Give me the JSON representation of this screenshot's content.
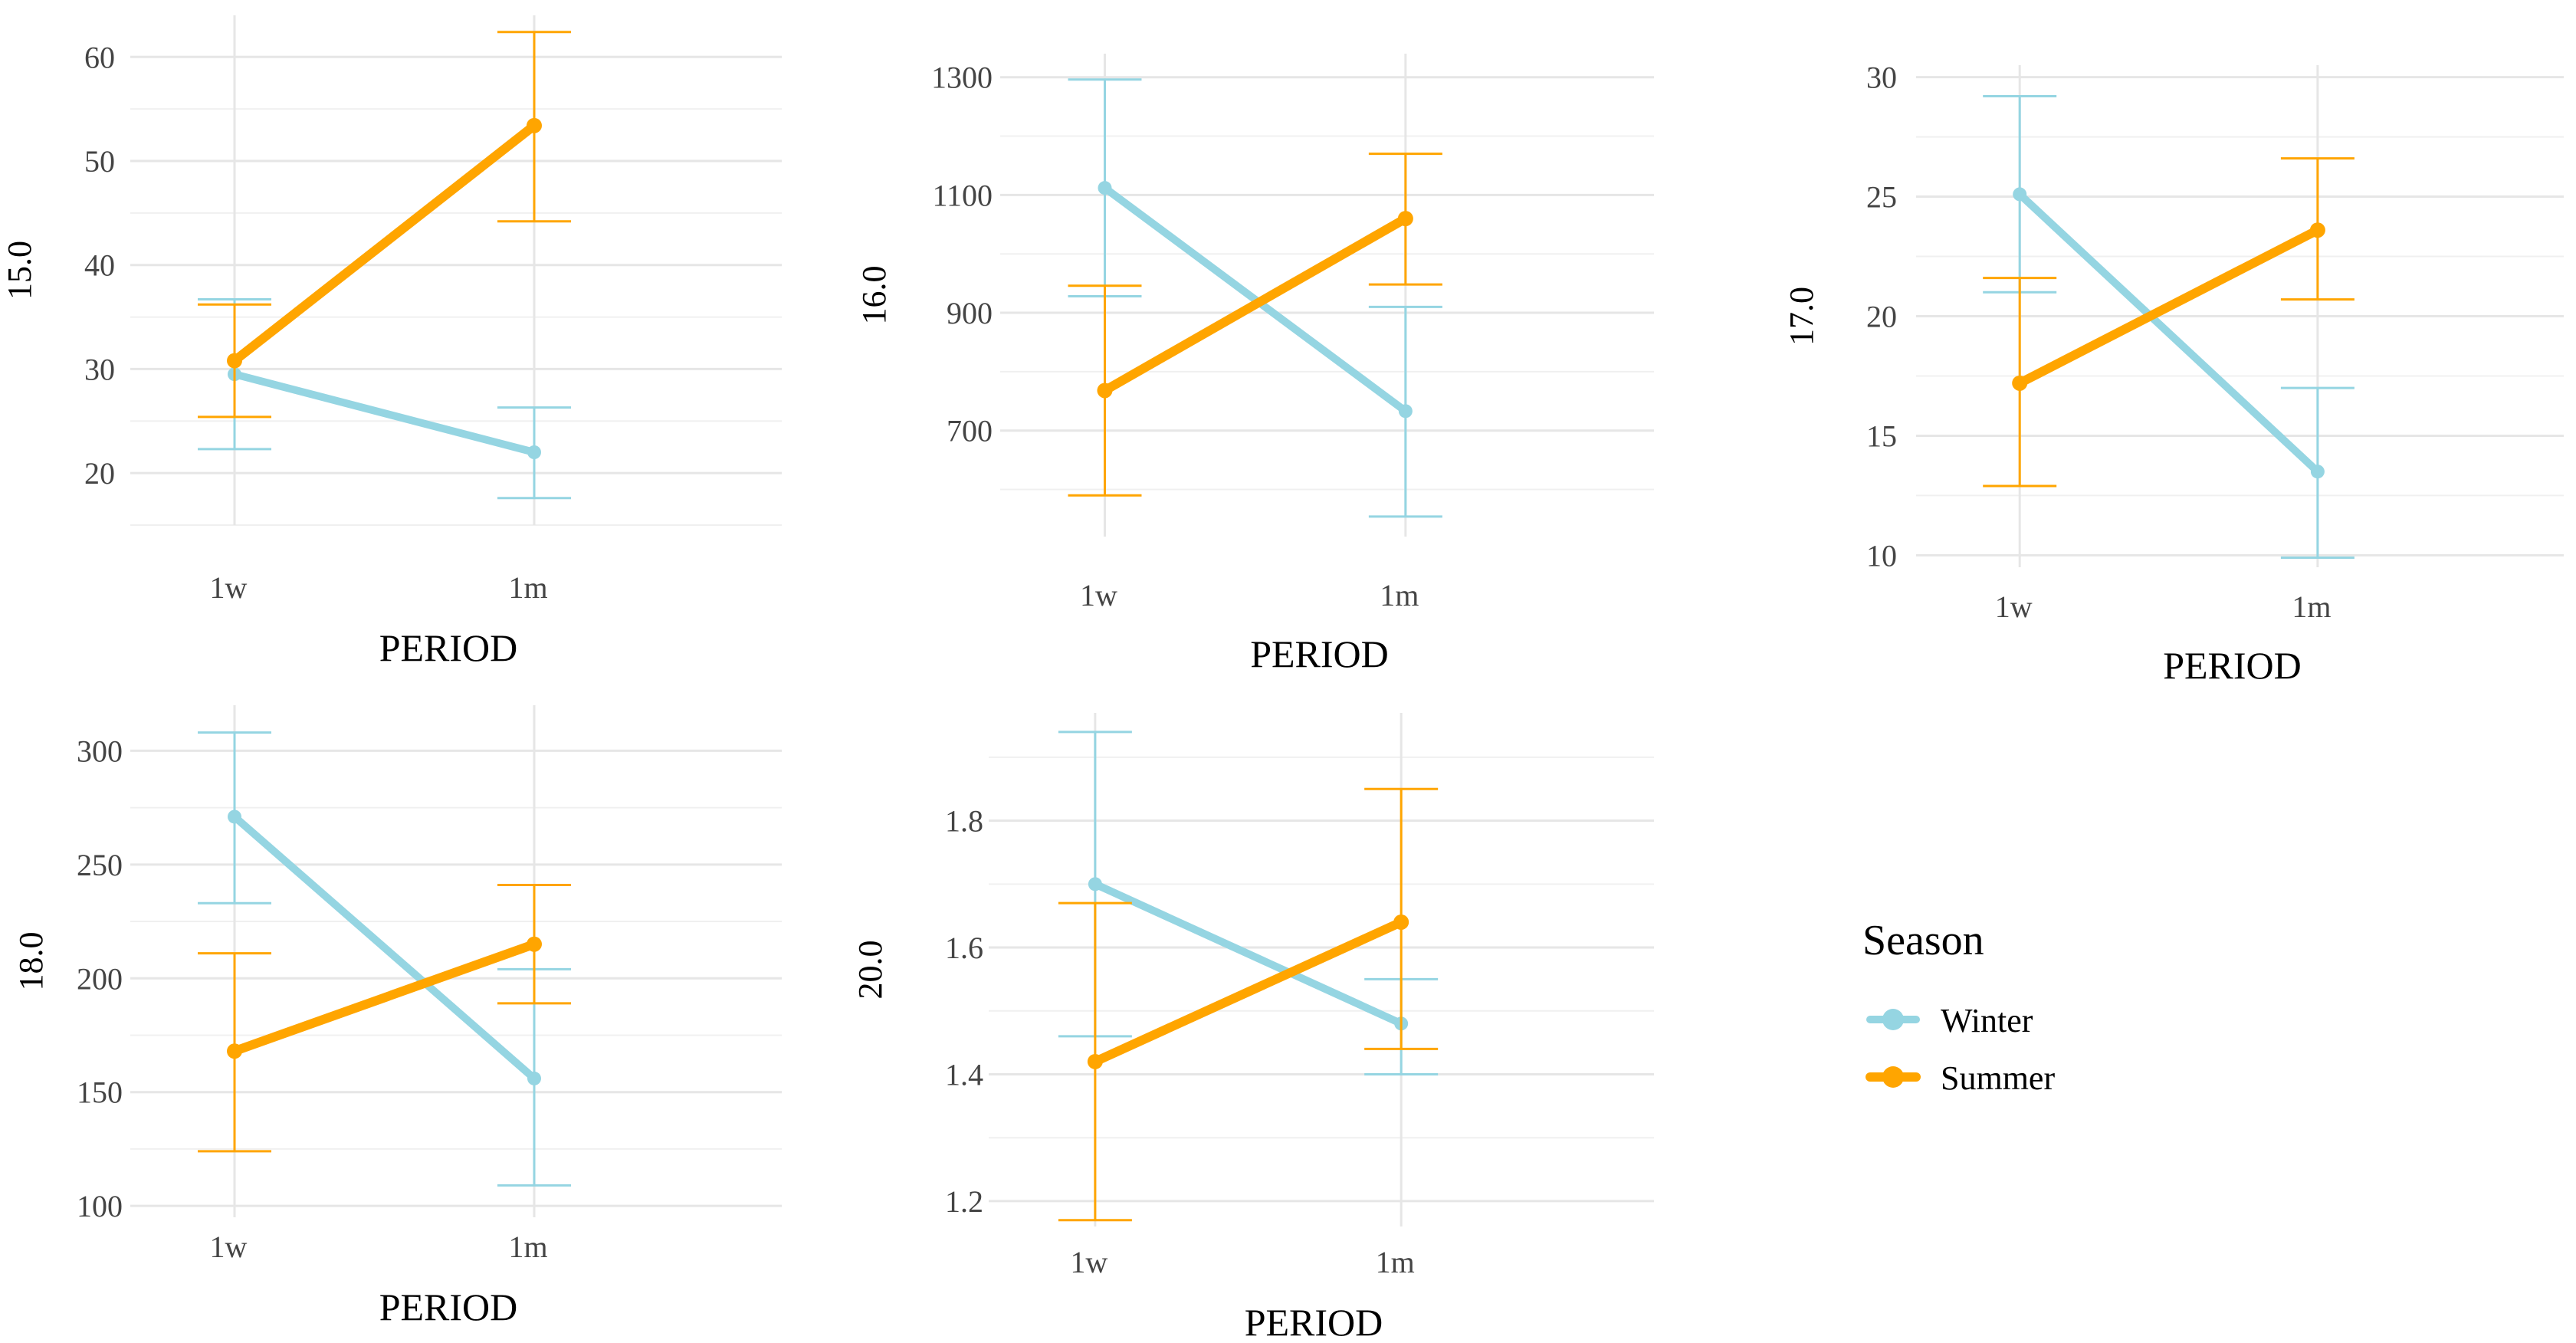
{
  "legend": {
    "title": "Season",
    "entries": [
      {
        "name": "Winter",
        "color": "#95d5e2"
      },
      {
        "name": "Summer",
        "color": "#ffa500"
      }
    ]
  },
  "chart_data": [
    {
      "type": "line",
      "ylabel": "15.0",
      "xlabel": "PERIOD",
      "categories": [
        "1w",
        "1m"
      ],
      "ylim": [
        15,
        64
      ],
      "yticks": [
        20,
        30,
        40,
        50,
        60
      ],
      "series": [
        {
          "name": "Winter",
          "color": "#95d5e2",
          "values": [
            29.5,
            22.0
          ],
          "lower": [
            22.3,
            17.6
          ],
          "upper": [
            36.7,
            26.3
          ]
        },
        {
          "name": "Summer",
          "color": "#ffa500",
          "values": [
            30.8,
            53.4
          ],
          "lower": [
            25.4,
            44.2
          ],
          "upper": [
            36.2,
            62.4
          ]
        }
      ]
    },
    {
      "type": "line",
      "ylabel": "16.0",
      "xlabel": "PERIOD",
      "categories": [
        "1w",
        "1m"
      ],
      "ylim": [
        520,
        1340
      ],
      "yticks": [
        700,
        900,
        1100,
        1300
      ],
      "series": [
        {
          "name": "Winter",
          "color": "#95d5e2",
          "values": [
            1112,
            733
          ],
          "lower": [
            928,
            554
          ],
          "upper": [
            1296,
            910
          ]
        },
        {
          "name": "Summer",
          "color": "#ffa500",
          "values": [
            768,
            1060
          ],
          "lower": [
            590,
            948
          ],
          "upper": [
            946,
            1170
          ]
        }
      ]
    },
    {
      "type": "line",
      "ylabel": "17.0",
      "xlabel": "PERIOD",
      "categories": [
        "1w",
        "1m"
      ],
      "ylim": [
        9.5,
        30.5
      ],
      "yticks": [
        10,
        15,
        20,
        25,
        30
      ],
      "series": [
        {
          "name": "Winter",
          "color": "#95d5e2",
          "values": [
            25.1,
            13.5
          ],
          "lower": [
            21.0,
            9.9
          ],
          "upper": [
            29.2,
            17.0
          ]
        },
        {
          "name": "Summer",
          "color": "#ffa500",
          "values": [
            17.2,
            23.6
          ],
          "lower": [
            12.9,
            20.7
          ],
          "upper": [
            21.6,
            26.6
          ]
        }
      ]
    },
    {
      "type": "line",
      "ylabel": "18.0",
      "xlabel": "PERIOD",
      "categories": [
        "1w",
        "1m"
      ],
      "ylim": [
        95,
        320
      ],
      "yticks": [
        100,
        150,
        200,
        250,
        300
      ],
      "series": [
        {
          "name": "Winter",
          "color": "#95d5e2",
          "values": [
            271,
            156
          ],
          "lower": [
            233,
            109
          ],
          "upper": [
            308,
            204
          ]
        },
        {
          "name": "Summer",
          "color": "#ffa500",
          "values": [
            168,
            215
          ],
          "lower": [
            124,
            189
          ],
          "upper": [
            211,
            241
          ]
        }
      ]
    },
    {
      "type": "line",
      "ylabel": "20.0",
      "xlabel": "PERIOD",
      "categories": [
        "1w",
        "1m"
      ],
      "ylim": [
        1.16,
        1.97
      ],
      "yticks": [
        1.2,
        1.4,
        1.6,
        1.8
      ],
      "series": [
        {
          "name": "Winter",
          "color": "#95d5e2",
          "values": [
            1.7,
            1.48
          ],
          "lower": [
            1.46,
            1.4
          ],
          "upper": [
            1.94,
            1.55
          ]
        },
        {
          "name": "Summer",
          "color": "#ffa500",
          "values": [
            1.42,
            1.64
          ],
          "lower": [
            1.17,
            1.44
          ],
          "upper": [
            1.67,
            1.85
          ]
        }
      ]
    }
  ]
}
